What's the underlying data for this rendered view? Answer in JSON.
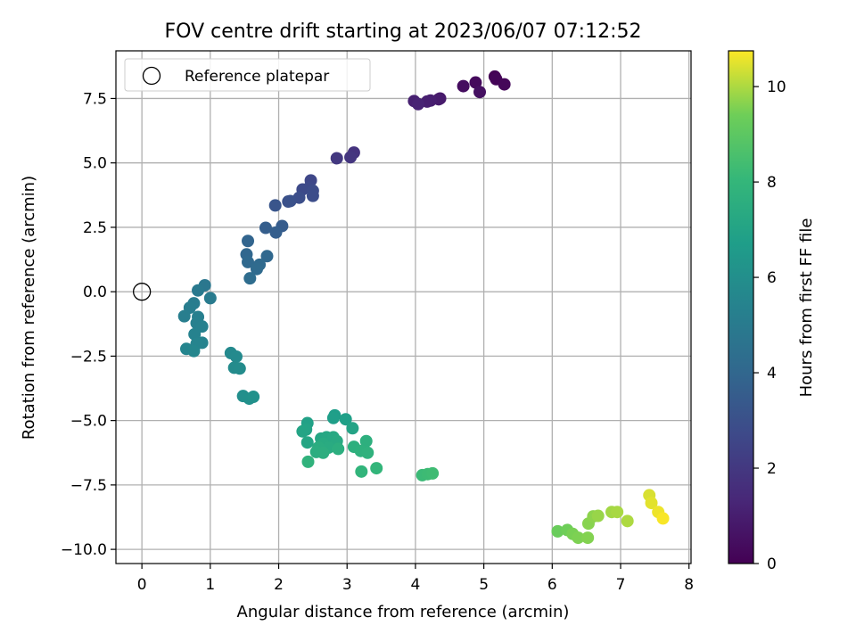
{
  "chart_data": {
    "type": "scatter",
    "title": "FOV centre drift starting at 2023/06/07 07:12:52",
    "xlabel": "Angular distance from reference (arcmin)",
    "ylabel": "Rotation from reference (arcmin)",
    "xlim": [
      -0.38,
      8.03
    ],
    "ylim": [
      -10.55,
      9.35
    ],
    "xticks": [
      {
        "value": 0,
        "label": "0"
      },
      {
        "value": 1,
        "label": "1"
      },
      {
        "value": 2,
        "label": "2"
      },
      {
        "value": 3,
        "label": "3"
      },
      {
        "value": 4,
        "label": "4"
      },
      {
        "value": 5,
        "label": "5"
      },
      {
        "value": 6,
        "label": "6"
      },
      {
        "value": 7,
        "label": "7"
      },
      {
        "value": 8,
        "label": "8"
      }
    ],
    "yticks": [
      {
        "value": 7.5,
        "label": "7.5"
      },
      {
        "value": 5.0,
        "label": "5.0"
      },
      {
        "value": 2.5,
        "label": "2.5"
      },
      {
        "value": 0.0,
        "label": "0.0"
      },
      {
        "value": -2.5,
        "label": "−2.5"
      },
      {
        "value": -5.0,
        "label": "−5.0"
      },
      {
        "value": -7.5,
        "label": "−7.5"
      },
      {
        "value": -10.0,
        "label": "−10.0"
      }
    ],
    "grid": true,
    "legend": {
      "position": "top-left",
      "entries": [
        "Reference platepar"
      ]
    },
    "reference_point": {
      "x": 0,
      "y": 0
    },
    "colorbar": {
      "label": "Hours from first FF file",
      "colormap": "viridis",
      "range": [
        0,
        10.75
      ],
      "ticks": [
        {
          "value": 0,
          "label": "0"
        },
        {
          "value": 2,
          "label": "2"
        },
        {
          "value": 4,
          "label": "4"
        },
        {
          "value": 6,
          "label": "6"
        },
        {
          "value": 8,
          "label": "8"
        },
        {
          "value": 10,
          "label": "10"
        }
      ]
    },
    "points": [
      {
        "x": 5.16,
        "y": 8.35,
        "t": 0.0
      },
      {
        "x": 5.18,
        "y": 8.25,
        "t": 0.1
      },
      {
        "x": 4.88,
        "y": 8.12,
        "t": 0.3
      },
      {
        "x": 5.3,
        "y": 8.05,
        "t": 0.2
      },
      {
        "x": 4.7,
        "y": 7.98,
        "t": 0.4
      },
      {
        "x": 4.94,
        "y": 7.75,
        "t": 0.5
      },
      {
        "x": 4.36,
        "y": 7.5,
        "t": 0.8
      },
      {
        "x": 4.34,
        "y": 7.47,
        "t": 0.9
      },
      {
        "x": 4.22,
        "y": 7.42,
        "t": 1.0
      },
      {
        "x": 4.17,
        "y": 7.38,
        "t": 1.05
      },
      {
        "x": 3.98,
        "y": 7.4,
        "t": 1.1
      },
      {
        "x": 4.04,
        "y": 7.28,
        "t": 1.2
      },
      {
        "x": 3.1,
        "y": 5.4,
        "t": 1.8
      },
      {
        "x": 3.05,
        "y": 5.22,
        "t": 1.9
      },
      {
        "x": 2.85,
        "y": 5.18,
        "t": 2.0
      },
      {
        "x": 2.47,
        "y": 4.32,
        "t": 2.6
      },
      {
        "x": 2.45,
        "y": 4.05,
        "t": 2.7
      },
      {
        "x": 2.35,
        "y": 3.97,
        "t": 2.75
      },
      {
        "x": 2.5,
        "y": 3.92,
        "t": 2.8
      },
      {
        "x": 2.3,
        "y": 3.65,
        "t": 2.9
      },
      {
        "x": 2.5,
        "y": 3.72,
        "t": 2.85
      },
      {
        "x": 2.17,
        "y": 3.52,
        "t": 3.0
      },
      {
        "x": 2.14,
        "y": 3.5,
        "t": 3.05
      },
      {
        "x": 1.95,
        "y": 3.35,
        "t": 3.2
      },
      {
        "x": 2.05,
        "y": 2.55,
        "t": 3.5
      },
      {
        "x": 1.81,
        "y": 2.48,
        "t": 3.6
      },
      {
        "x": 1.96,
        "y": 2.3,
        "t": 3.65
      },
      {
        "x": 1.55,
        "y": 1.97,
        "t": 3.9
      },
      {
        "x": 1.53,
        "y": 1.45,
        "t": 4.0
      },
      {
        "x": 1.55,
        "y": 1.15,
        "t": 4.1
      },
      {
        "x": 1.83,
        "y": 1.38,
        "t": 4.05
      },
      {
        "x": 1.72,
        "y": 1.05,
        "t": 4.15
      },
      {
        "x": 1.68,
        "y": 0.88,
        "t": 4.2
      },
      {
        "x": 1.58,
        "y": 0.52,
        "t": 4.3
      },
      {
        "x": 0.92,
        "y": 0.25,
        "t": 4.8
      },
      {
        "x": 0.82,
        "y": 0.05,
        "t": 4.9
      },
      {
        "x": 1.0,
        "y": -0.25,
        "t": 5.0
      },
      {
        "x": 0.76,
        "y": -0.45,
        "t": 5.05
      },
      {
        "x": 0.7,
        "y": -0.62,
        "t": 5.1
      },
      {
        "x": 0.62,
        "y": -0.95,
        "t": 5.15
      },
      {
        "x": 0.82,
        "y": -0.98,
        "t": 5.2
      },
      {
        "x": 0.8,
        "y": -1.22,
        "t": 5.25
      },
      {
        "x": 0.88,
        "y": -1.35,
        "t": 5.3
      },
      {
        "x": 0.77,
        "y": -1.65,
        "t": 5.35
      },
      {
        "x": 0.88,
        "y": -1.98,
        "t": 5.4
      },
      {
        "x": 0.8,
        "y": -2.02,
        "t": 5.45
      },
      {
        "x": 0.65,
        "y": -2.22,
        "t": 5.5
      },
      {
        "x": 0.76,
        "y": -2.3,
        "t": 5.55
      },
      {
        "x": 1.3,
        "y": -2.38,
        "t": 5.7
      },
      {
        "x": 1.38,
        "y": -2.52,
        "t": 5.75
      },
      {
        "x": 1.35,
        "y": -2.95,
        "t": 5.8
      },
      {
        "x": 1.43,
        "y": -2.98,
        "t": 5.85
      },
      {
        "x": 1.48,
        "y": -4.05,
        "t": 6.0
      },
      {
        "x": 1.57,
        "y": -4.15,
        "t": 6.05
      },
      {
        "x": 1.63,
        "y": -4.08,
        "t": 6.1
      },
      {
        "x": 2.82,
        "y": -4.8,
        "t": 6.7
      },
      {
        "x": 2.8,
        "y": -4.9,
        "t": 6.75
      },
      {
        "x": 2.98,
        "y": -4.95,
        "t": 6.8
      },
      {
        "x": 2.42,
        "y": -5.1,
        "t": 6.9
      },
      {
        "x": 2.4,
        "y": -5.35,
        "t": 7.0
      },
      {
        "x": 2.35,
        "y": -5.42,
        "t": 7.05
      },
      {
        "x": 3.08,
        "y": -5.3,
        "t": 7.0
      },
      {
        "x": 2.42,
        "y": -5.85,
        "t": 7.1
      },
      {
        "x": 2.62,
        "y": -5.7,
        "t": 7.15
      },
      {
        "x": 2.7,
        "y": -5.65,
        "t": 7.2
      },
      {
        "x": 2.8,
        "y": -5.65,
        "t": 7.25
      },
      {
        "x": 2.85,
        "y": -5.8,
        "t": 7.3
      },
      {
        "x": 2.65,
        "y": -5.9,
        "t": 7.35
      },
      {
        "x": 2.73,
        "y": -6.05,
        "t": 7.4
      },
      {
        "x": 2.58,
        "y": -6.05,
        "t": 7.45
      },
      {
        "x": 2.55,
        "y": -6.22,
        "t": 7.5
      },
      {
        "x": 2.65,
        "y": -6.25,
        "t": 7.55
      },
      {
        "x": 2.87,
        "y": -6.1,
        "t": 7.6
      },
      {
        "x": 3.1,
        "y": -6.02,
        "t": 7.62
      },
      {
        "x": 3.28,
        "y": -5.8,
        "t": 7.65
      },
      {
        "x": 3.2,
        "y": -6.18,
        "t": 7.7
      },
      {
        "x": 3.3,
        "y": -6.25,
        "t": 7.75
      },
      {
        "x": 2.43,
        "y": -6.6,
        "t": 7.8
      },
      {
        "x": 3.21,
        "y": -6.98,
        "t": 7.9
      },
      {
        "x": 3.43,
        "y": -6.85,
        "t": 7.95
      },
      {
        "x": 4.1,
        "y": -7.12,
        "t": 8.2
      },
      {
        "x": 4.18,
        "y": -7.08,
        "t": 8.25
      },
      {
        "x": 4.25,
        "y": -7.05,
        "t": 8.3
      },
      {
        "x": 6.08,
        "y": -9.3,
        "t": 9.3
      },
      {
        "x": 6.22,
        "y": -9.25,
        "t": 9.4
      },
      {
        "x": 6.3,
        "y": -9.4,
        "t": 9.5
      },
      {
        "x": 6.38,
        "y": -9.55,
        "t": 9.55
      },
      {
        "x": 6.52,
        "y": -9.55,
        "t": 9.6
      },
      {
        "x": 6.53,
        "y": -9.0,
        "t": 9.65
      },
      {
        "x": 6.6,
        "y": -8.72,
        "t": 9.7
      },
      {
        "x": 6.67,
        "y": -8.7,
        "t": 9.8
      },
      {
        "x": 6.87,
        "y": -8.55,
        "t": 9.9
      },
      {
        "x": 6.95,
        "y": -8.55,
        "t": 9.95
      },
      {
        "x": 7.1,
        "y": -8.9,
        "t": 10.0
      },
      {
        "x": 7.42,
        "y": -7.9,
        "t": 10.4
      },
      {
        "x": 7.45,
        "y": -8.2,
        "t": 10.5
      },
      {
        "x": 7.55,
        "y": -8.55,
        "t": 10.6
      },
      {
        "x": 7.62,
        "y": -8.8,
        "t": 10.7
      }
    ]
  }
}
